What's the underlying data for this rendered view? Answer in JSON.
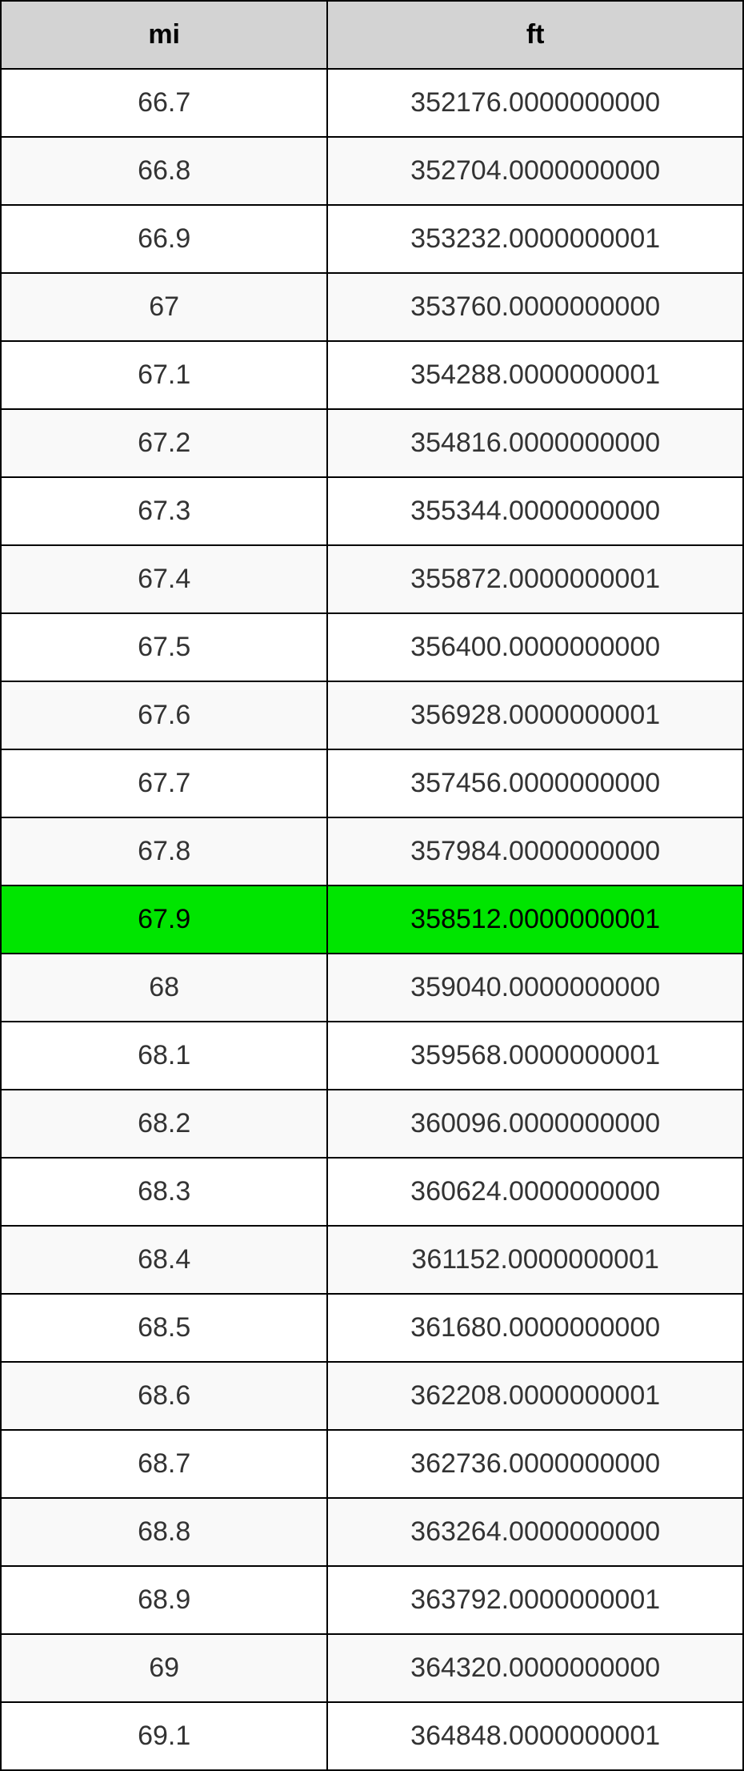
{
  "table": {
    "type": "table",
    "columns": [
      "mi",
      "ft"
    ],
    "column_widths_pct": [
      44,
      56
    ],
    "header_bg": "#d3d3d3",
    "header_font_weight": "bold",
    "header_fontsize": 34,
    "cell_fontsize": 34,
    "border_color": "#000000",
    "border_width": 2,
    "row_bg_odd": "#ffffff",
    "row_bg_even": "#f9f9f9",
    "highlight_bg": "#00e500",
    "text_color": "#333333",
    "text_align": "center",
    "rows": [
      {
        "mi": "66.7",
        "ft": "352176.0000000000",
        "highlight": false
      },
      {
        "mi": "66.8",
        "ft": "352704.0000000000",
        "highlight": false
      },
      {
        "mi": "66.9",
        "ft": "353232.0000000001",
        "highlight": false
      },
      {
        "mi": "67",
        "ft": "353760.0000000000",
        "highlight": false
      },
      {
        "mi": "67.1",
        "ft": "354288.0000000001",
        "highlight": false
      },
      {
        "mi": "67.2",
        "ft": "354816.0000000000",
        "highlight": false
      },
      {
        "mi": "67.3",
        "ft": "355344.0000000000",
        "highlight": false
      },
      {
        "mi": "67.4",
        "ft": "355872.0000000001",
        "highlight": false
      },
      {
        "mi": "67.5",
        "ft": "356400.0000000000",
        "highlight": false
      },
      {
        "mi": "67.6",
        "ft": "356928.0000000001",
        "highlight": false
      },
      {
        "mi": "67.7",
        "ft": "357456.0000000000",
        "highlight": false
      },
      {
        "mi": "67.8",
        "ft": "357984.0000000000",
        "highlight": false
      },
      {
        "mi": "67.9",
        "ft": "358512.0000000001",
        "highlight": true
      },
      {
        "mi": "68",
        "ft": "359040.0000000000",
        "highlight": false
      },
      {
        "mi": "68.1",
        "ft": "359568.0000000001",
        "highlight": false
      },
      {
        "mi": "68.2",
        "ft": "360096.0000000000",
        "highlight": false
      },
      {
        "mi": "68.3",
        "ft": "360624.0000000000",
        "highlight": false
      },
      {
        "mi": "68.4",
        "ft": "361152.0000000001",
        "highlight": false
      },
      {
        "mi": "68.5",
        "ft": "361680.0000000000",
        "highlight": false
      },
      {
        "mi": "68.6",
        "ft": "362208.0000000001",
        "highlight": false
      },
      {
        "mi": "68.7",
        "ft": "362736.0000000000",
        "highlight": false
      },
      {
        "mi": "68.8",
        "ft": "363264.0000000000",
        "highlight": false
      },
      {
        "mi": "68.9",
        "ft": "363792.0000000001",
        "highlight": false
      },
      {
        "mi": "69",
        "ft": "364320.0000000000",
        "highlight": false
      },
      {
        "mi": "69.1",
        "ft": "364848.0000000001",
        "highlight": false
      }
    ]
  }
}
